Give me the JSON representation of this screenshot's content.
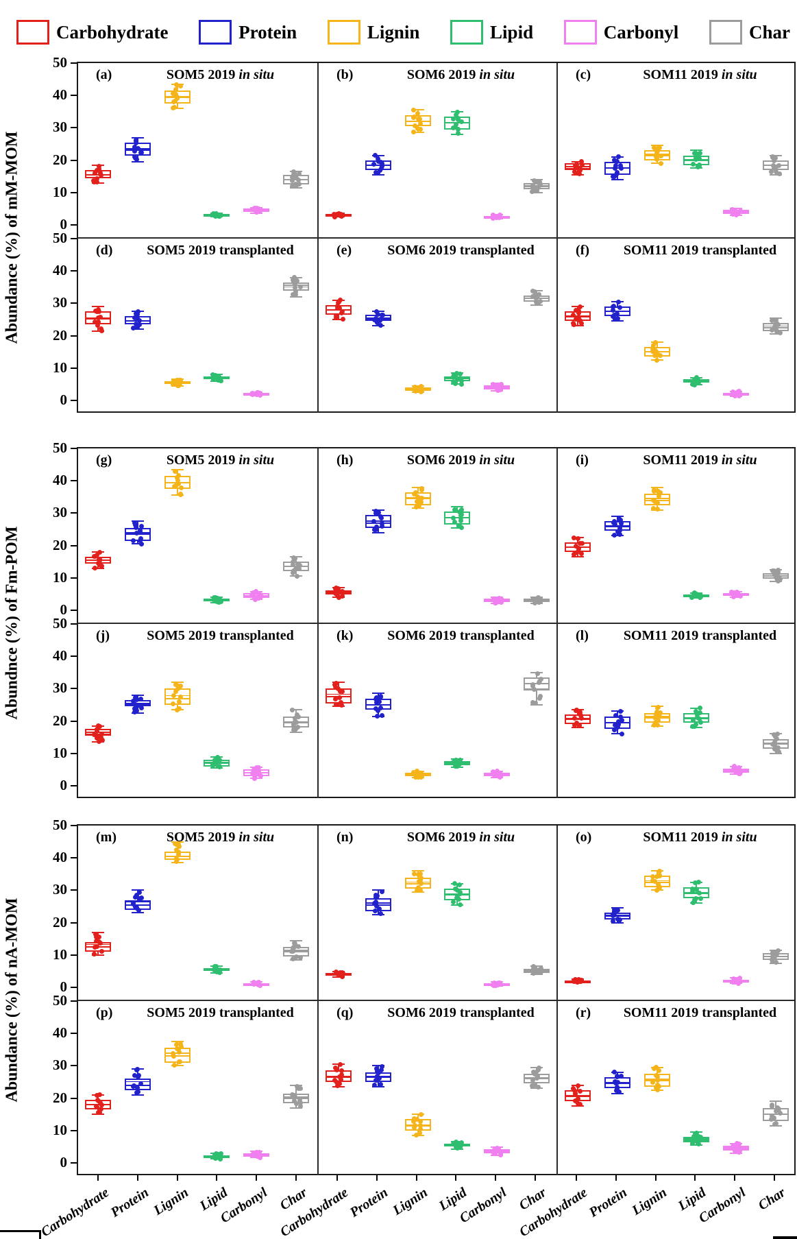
{
  "legend": {
    "items": [
      {
        "label": "Carbohydrate",
        "color": "#E2201C"
      },
      {
        "label": "Protein",
        "color": "#2222CC"
      },
      {
        "label": "Lignin",
        "color": "#F4B41A"
      },
      {
        "label": "Lipid",
        "color": "#2FBE70"
      },
      {
        "label": "Carbonyl",
        "color": "#F080F0"
      },
      {
        "label": "Char",
        "color": "#9C9C9C"
      }
    ]
  },
  "chart_data": {
    "type": "boxplot-grid",
    "categories": [
      "Carbohydrate",
      "Protein",
      "Lignin",
      "Lipid",
      "Carbonyl",
      "Char"
    ],
    "category_colors": [
      "#E2201C",
      "#2222CC",
      "#F4B41A",
      "#2FBE70",
      "#F080F0",
      "#9C9C9C"
    ],
    "ylim": [
      0,
      50
    ],
    "yticks": [
      0,
      10,
      20,
      30,
      40,
      50
    ],
    "box_format": [
      "median",
      "q1",
      "q3",
      "whisker_low",
      "whisker_high"
    ],
    "blocks": [
      {
        "ylabel": "Abundance (%) of mM-MOM",
        "panels": [
          {
            "label": "(a)",
            "site": "SOM5 2019",
            "treatment": "in situ",
            "italic": true,
            "boxes": [
              [
                15.5,
                14.5,
                17,
                13,
                18.5
              ],
              [
                23.5,
                21.5,
                25.5,
                19.5,
                27
              ],
              [
                39.5,
                37.5,
                41.5,
                36,
                43.5
              ],
              [
                3,
                2.8,
                3.3,
                2.5,
                3.6
              ],
              [
                4.5,
                4,
                5,
                3.6,
                5.4
              ],
              [
                14,
                12.5,
                15.5,
                11.5,
                16.5
              ]
            ]
          },
          {
            "label": "(b)",
            "site": "SOM6 2019",
            "treatment": "in situ",
            "italic": true,
            "boxes": [
              [
                3,
                2.7,
                3.3,
                2.5,
                3.6
              ],
              [
                18.5,
                17,
                20,
                15.5,
                21.5
              ],
              [
                32,
                30.5,
                34,
                28.5,
                35.5
              ],
              [
                31.5,
                29.5,
                33.5,
                28,
                35
              ],
              [
                2.5,
                2.2,
                2.8,
                2,
                3.1
              ],
              [
                12,
                11,
                13,
                10,
                14
              ]
            ]
          },
          {
            "label": "(c)",
            "site": "SOM11 2019",
            "treatment": "in situ",
            "italic": true,
            "boxes": [
              [
                18,
                17,
                19,
                15.5,
                19.5
              ],
              [
                17.5,
                15.5,
                19.5,
                14,
                21
              ],
              [
                21.5,
                20,
                23,
                19,
                24.5
              ],
              [
                20,
                18.5,
                21.5,
                17.5,
                23
              ],
              [
                4,
                3.4,
                4.6,
                3,
                5
              ],
              [
                18.5,
                17,
                20,
                15.5,
                21.5
              ]
            ]
          },
          {
            "label": "(d)",
            "site": "SOM5 2019",
            "treatment": "transplanted",
            "italic": false,
            "boxes": [
              [
                25.5,
                23.5,
                27.5,
                21.5,
                29
              ],
              [
                24.5,
                23.5,
                26,
                22,
                27.5
              ],
              [
                5.5,
                5,
                6,
                4.5,
                6.5
              ],
              [
                7,
                6.5,
                7.5,
                6,
                8
              ],
              [
                2,
                1.8,
                2.3,
                1.5,
                2.6
              ],
              [
                35.5,
                34,
                36.5,
                32,
                38
              ]
            ]
          },
          {
            "label": "(e)",
            "site": "SOM6 2019",
            "treatment": "transplanted",
            "italic": false,
            "boxes": [
              [
                28,
                26.5,
                29.5,
                25,
                31
              ],
              [
                25.5,
                24.5,
                26.5,
                23,
                27.5
              ],
              [
                3.5,
                3,
                4,
                2.6,
                4.4
              ],
              [
                7,
                6,
                7.5,
                5,
                8.5
              ],
              [
                4,
                3.4,
                4.6,
                3,
                5.2
              ],
              [
                31.5,
                30.5,
                32.5,
                29.5,
                34
              ]
            ]
          },
          {
            "label": "(f)",
            "site": "SOM11 2019",
            "treatment": "transplanted",
            "italic": false,
            "boxes": [
              [
                26,
                24.5,
                27.5,
                23,
                29
              ],
              [
                27.5,
                26,
                29,
                24.5,
                30.5
              ],
              [
                15,
                13.5,
                16.5,
                12.5,
                18
              ],
              [
                6,
                5.5,
                6.5,
                4.8,
                7
              ],
              [
                2,
                1.6,
                2.4,
                1.2,
                2.8
              ],
              [
                22.5,
                21.5,
                24,
                20.5,
                25.5
              ]
            ]
          }
        ]
      },
      {
        "ylabel": "Abundnce (%) of Fm-POM",
        "panels": [
          {
            "label": "(g)",
            "site": "SOM5 2019",
            "treatment": "in situ",
            "italic": true,
            "boxes": [
              [
                15.5,
                14.5,
                16.5,
                13,
                18
              ],
              [
                23.5,
                21.5,
                25.5,
                20.5,
                27.5
              ],
              [
                39.5,
                37.5,
                41.5,
                35.5,
                43.5
              ],
              [
                3,
                2.7,
                3.5,
                2.3,
                4
              ],
              [
                4.5,
                3.8,
                5.2,
                3.3,
                5.8
              ],
              [
                13.5,
                12,
                15,
                10.5,
                16.5
              ]
            ]
          },
          {
            "label": "(h)",
            "site": "SOM6 2019",
            "treatment": "in situ",
            "italic": true,
            "boxes": [
              [
                5.5,
                4.8,
                6.2,
                4,
                7
              ],
              [
                27,
                25.5,
                29.5,
                24,
                31
              ],
              [
                34.5,
                32.5,
                36.5,
                31.5,
                38
              ],
              [
                28.5,
                26.5,
                30.5,
                25.5,
                32
              ],
              [
                3,
                2.6,
                3.6,
                2.2,
                4
              ],
              [
                3,
                2.6,
                3.5,
                2.2,
                4
              ]
            ]
          },
          {
            "label": "(i)",
            "site": "SOM11 2019",
            "treatment": "in situ",
            "italic": true,
            "boxes": [
              [
                19.5,
                18,
                21,
                16.5,
                22.5
              ],
              [
                26,
                24.5,
                27.5,
                23,
                29
              ],
              [
                34,
                32.5,
                36,
                31,
                38
              ],
              [
                4.5,
                4.1,
                4.9,
                3.8,
                5.3
              ],
              [
                5,
                4.5,
                5.4,
                4.1,
                5.8
              ],
              [
                10.5,
                9.8,
                11.5,
                9,
                12.5
              ]
            ]
          },
          {
            "label": "(j)",
            "site": "SOM5 2019",
            "treatment": "transplanted",
            "italic": false,
            "boxes": [
              [
                16.5,
                15.5,
                17.5,
                13.5,
                18.5
              ],
              [
                25.5,
                24.5,
                26.5,
                22.5,
                28
              ],
              [
                27,
                25,
                30,
                23.5,
                32
              ],
              [
                7,
                6,
                8,
                5.5,
                9
              ],
              [
                4,
                3,
                5,
                2.3,
                5.8
              ],
              [
                19.5,
                18,
                21.5,
                16.5,
                23.5
              ]
            ]
          },
          {
            "label": "(k)",
            "site": "SOM6 2019",
            "treatment": "transplanted",
            "italic": false,
            "boxes": [
              [
                27.5,
                25.5,
                30,
                24.5,
                32
              ],
              [
                25,
                23.5,
                27,
                21.5,
                28.5
              ],
              [
                3.5,
                3,
                4,
                2.5,
                4.5
              ],
              [
                7,
                6.3,
                7.6,
                5.8,
                8.2
              ],
              [
                3.5,
                3,
                4,
                2.6,
                4.5
              ],
              [
                31.5,
                29.5,
                33.5,
                25,
                35
              ]
            ]
          },
          {
            "label": "(l)",
            "site": "SOM11 2019",
            "treatment": "transplanted",
            "italic": false,
            "boxes": [
              [
                20.5,
                19,
                22,
                18,
                23.5
              ],
              [
                19.5,
                17.5,
                21.5,
                16,
                23
              ],
              [
                21,
                19.5,
                22.5,
                18.5,
                24.5
              ],
              [
                21,
                19.5,
                22.5,
                18,
                24
              ],
              [
                4.5,
                4,
                5.2,
                3.5,
                6
              ],
              [
                13,
                11.5,
                14.5,
                10,
                16
              ]
            ]
          }
        ]
      },
      {
        "ylabel": "Abundance (%) of nA-MOM",
        "panels": [
          {
            "label": "(m)",
            "site": "SOM5 2019",
            "treatment": "in situ",
            "italic": true,
            "boxes": [
              [
                12.5,
                11,
                14,
                10,
                17
              ],
              [
                25.5,
                24,
                27,
                23,
                30
              ],
              [
                40.5,
                39.5,
                42,
                38.5,
                45
              ],
              [
                5.5,
                5,
                6,
                4.5,
                6.5
              ],
              [
                1,
                0.8,
                1.3,
                0.6,
                1.6
              ],
              [
                11,
                9.5,
                12.5,
                8.5,
                14.5
              ]
            ]
          },
          {
            "label": "(n)",
            "site": "SOM6 2019",
            "treatment": "in situ",
            "italic": true,
            "boxes": [
              [
                4,
                3.6,
                4.4,
                3.2,
                4.9
              ],
              [
                25.5,
                23.5,
                27.5,
                22.5,
                30
              ],
              [
                32,
                30.5,
                34,
                29.5,
                36
              ],
              [
                28.5,
                27,
                30.5,
                25.5,
                32
              ],
              [
                1,
                0.8,
                1.3,
                0.5,
                1.6
              ],
              [
                5,
                4.5,
                5.7,
                4,
                6.5
              ]
            ]
          },
          {
            "label": "(o)",
            "site": "SOM11 2019",
            "treatment": "in situ",
            "italic": true,
            "boxes": [
              [
                2,
                1.8,
                2.2,
                1.5,
                2.5
              ],
              [
                22,
                21,
                23,
                20,
                24.5
              ],
              [
                32.5,
                31,
                34.5,
                30,
                36
              ],
              [
                29,
                27.5,
                31,
                26,
                32.5
              ],
              [
                2,
                1.6,
                2.4,
                1.2,
                2.9
              ],
              [
                9.5,
                8.5,
                10.5,
                7.5,
                11.5
              ]
            ]
          },
          {
            "label": "(p)",
            "site": "SOM5 2019",
            "treatment": "transplanted",
            "italic": false,
            "boxes": [
              [
                18,
                16.5,
                19.5,
                15,
                21
              ],
              [
                24,
                22.5,
                26,
                21,
                29
              ],
              [
                33,
                31,
                35.5,
                30,
                37.5
              ],
              [
                2,
                1.6,
                2.4,
                1.2,
                3
              ],
              [
                2.5,
                2,
                3,
                1.6,
                3.6
              ],
              [
                20,
                18.5,
                21.5,
                17,
                24
              ]
            ]
          },
          {
            "label": "(q)",
            "site": "SOM6 2019",
            "treatment": "transplanted",
            "italic": false,
            "boxes": [
              [
                26.5,
                25,
                28.5,
                23.5,
                30.5
              ],
              [
                26.5,
                25,
                28,
                23.5,
                30
              ],
              [
                11.5,
                10,
                13.5,
                8.5,
                15
              ],
              [
                5.5,
                5,
                6,
                4.3,
                6.6
              ],
              [
                3.5,
                3,
                4.2,
                2.4,
                4.8
              ],
              [
                26,
                24.5,
                27.5,
                23,
                29.5
              ]
            ]
          },
          {
            "label": "(r)",
            "site": "SOM11 2019",
            "treatment": "transplanted",
            "italic": false,
            "boxes": [
              [
                20.5,
                19,
                22.5,
                17.5,
                24
              ],
              [
                24.5,
                23,
                26.5,
                21.5,
                28
              ],
              [
                25.5,
                23.5,
                27.5,
                22.5,
                29.5
              ],
              [
                7,
                6.3,
                8,
                5.5,
                9.5
              ],
              [
                4.5,
                3.8,
                5.2,
                3,
                6
              ],
              [
                15,
                13,
                17,
                11.5,
                19
              ]
            ]
          }
        ]
      }
    ]
  }
}
